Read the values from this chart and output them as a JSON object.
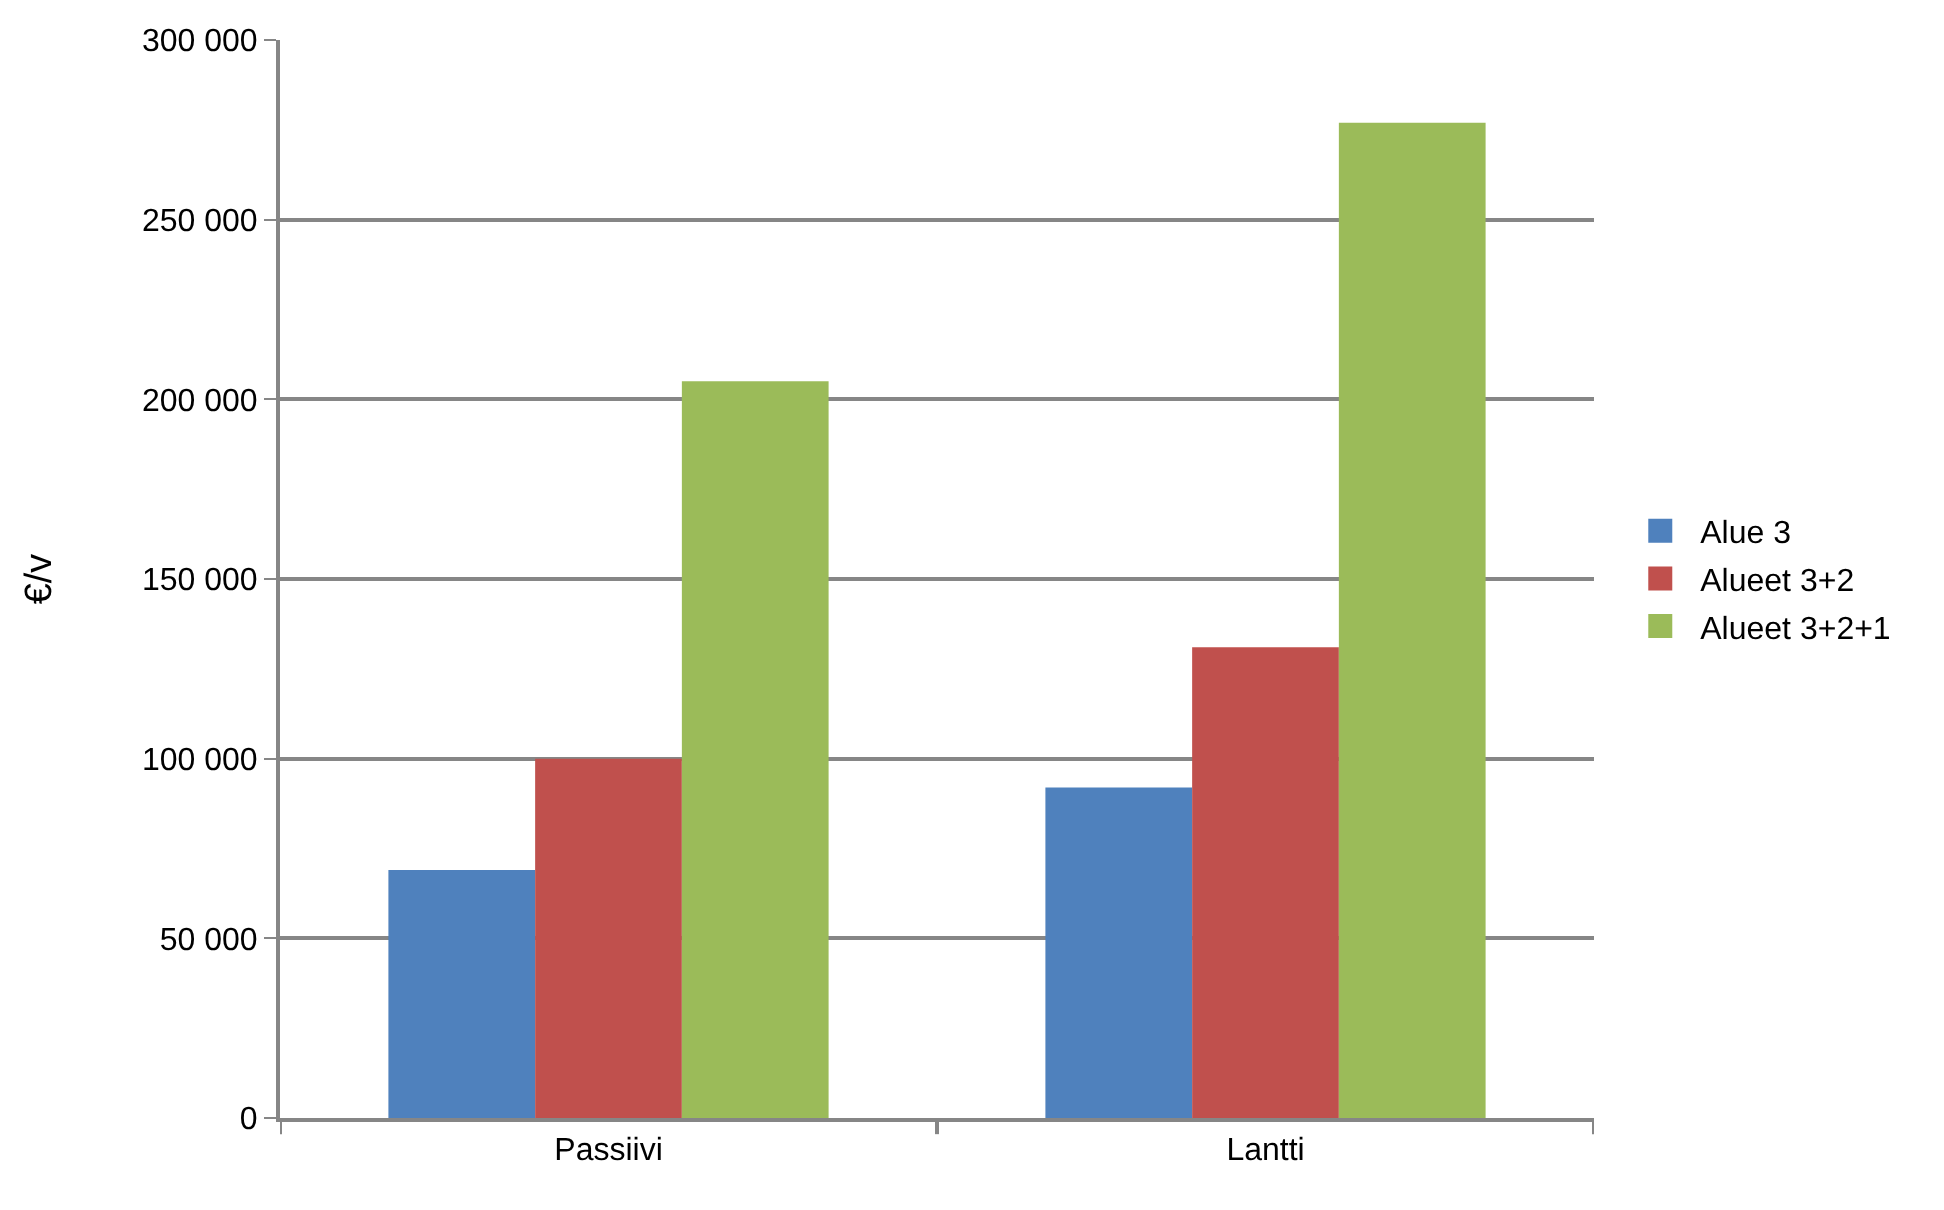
{
  "chart_data": {
    "type": "bar",
    "ylabel": "€/v",
    "categories": [
      "Passiivi",
      "Lantti"
    ],
    "series": [
      {
        "name": "Alue 3",
        "color": "#4f81bd",
        "values": [
          69000,
          92000
        ]
      },
      {
        "name": "Alueet 3+2",
        "color": "#c0504d",
        "values": [
          100000,
          131000
        ]
      },
      {
        "name": "Alueet 3+2+1",
        "color": "#9bbb59",
        "values": [
          205000,
          277000
        ]
      }
    ],
    "ylim": [
      0,
      300000
    ],
    "yticks": [
      {
        "value": 0,
        "label": "0"
      },
      {
        "value": 50000,
        "label": "50 000"
      },
      {
        "value": 100000,
        "label": "100 000"
      },
      {
        "value": 150000,
        "label": "150 000"
      },
      {
        "value": 200000,
        "label": "200 000"
      },
      {
        "value": 250000,
        "label": "250 000"
      },
      {
        "value": 300000,
        "label": "300 000"
      }
    ],
    "grid": "y",
    "legend": "right"
  }
}
